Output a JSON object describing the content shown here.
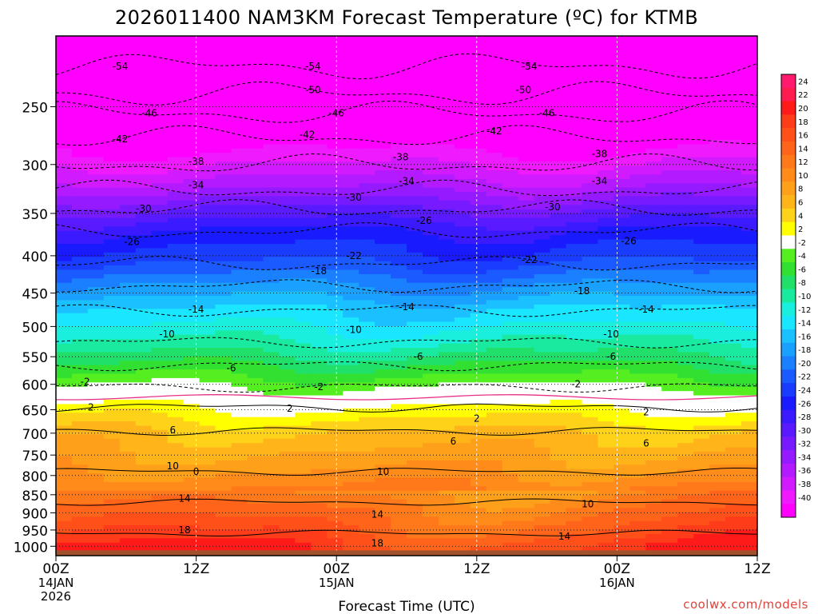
{
  "chart_data": {
    "type": "heatmap",
    "title": "2026011400 NAM3KM Forecast Temperature (ºC) for KTMB",
    "xlabel": "Forecast Time (UTC)",
    "ylabel": "",
    "x_range_hours": [
      0,
      60
    ],
    "y_range_hpa": [
      200,
      1030
    ],
    "x_ticks": [
      {
        "hour": 0,
        "lines": [
          "00Z",
          "14JAN",
          "2026"
        ]
      },
      {
        "hour": 12,
        "lines": [
          "12Z"
        ]
      },
      {
        "hour": 24,
        "lines": [
          "00Z",
          "15JAN"
        ]
      },
      {
        "hour": 36,
        "lines": [
          "12Z"
        ]
      },
      {
        "hour": 48,
        "lines": [
          "00Z",
          "16JAN"
        ]
      },
      {
        "hour": 60,
        "lines": [
          "12Z"
        ]
      }
    ],
    "y_ticks": [
      250,
      300,
      350,
      400,
      450,
      500,
      550,
      600,
      650,
      700,
      750,
      800,
      850,
      900,
      950,
      1000
    ],
    "colorbar": {
      "labels": [
        "24",
        "22",
        "20",
        "18",
        "16",
        "14",
        "12",
        "10",
        "8",
        "6",
        "4",
        "2",
        "-2",
        "-4",
        "-6",
        "-8",
        "-10",
        "-12",
        "-14",
        "-16",
        "-18",
        "-20",
        "-22",
        "-24",
        "-26",
        "-28",
        "-30",
        "-32",
        "-34",
        "-36",
        "-38",
        "-40"
      ],
      "bands": [
        {
          "min": 24,
          "color": "#ff1a6e"
        },
        {
          "min": 22,
          "color": "#ff1a50"
        },
        {
          "min": 20,
          "color": "#ff1a1a"
        },
        {
          "min": 18,
          "color": "#ff3c1a"
        },
        {
          "min": 16,
          "color": "#ff501a"
        },
        {
          "min": 14,
          "color": "#ff641a"
        },
        {
          "min": 12,
          "color": "#ff781a"
        },
        {
          "min": 10,
          "color": "#ff8c1a"
        },
        {
          "min": 8,
          "color": "#ffa01a"
        },
        {
          "min": 6,
          "color": "#ffb41a"
        },
        {
          "min": 4,
          "color": "#ffd21a"
        },
        {
          "min": 2,
          "color": "#ffff00"
        },
        {
          "min": -2,
          "color": "#ffffff"
        },
        {
          "min": -4,
          "color": "#55ee20"
        },
        {
          "min": -6,
          "color": "#32e032"
        },
        {
          "min": -8,
          "color": "#20e06a"
        },
        {
          "min": -10,
          "color": "#1aeaa0"
        },
        {
          "min": -12,
          "color": "#1aeedc"
        },
        {
          "min": -14,
          "color": "#1ae6ff"
        },
        {
          "min": -16,
          "color": "#1ac0ff"
        },
        {
          "min": -18,
          "color": "#1aa0ff"
        },
        {
          "min": -20,
          "color": "#1a80ff"
        },
        {
          "min": -22,
          "color": "#1a5aff"
        },
        {
          "min": -24,
          "color": "#1a3cff"
        },
        {
          "min": -26,
          "color": "#1a1aff"
        },
        {
          "min": -28,
          "color": "#3c1aff"
        },
        {
          "min": -30,
          "color": "#5a1aff"
        },
        {
          "min": -32,
          "color": "#781aff"
        },
        {
          "min": -34,
          "color": "#961aff"
        },
        {
          "min": -36,
          "color": "#b41aff"
        },
        {
          "min": -38,
          "color": "#d21aff"
        },
        {
          "min": -40,
          "color": "#f01aff"
        },
        {
          "min": -999,
          "color": "#ff00ff"
        }
      ]
    },
    "temperature_profile": [
      {
        "p": 200,
        "t": -58
      },
      {
        "p": 220,
        "t": -54
      },
      {
        "p": 240,
        "t": -50
      },
      {
        "p": 255,
        "t": -46
      },
      {
        "p": 275,
        "t": -42
      },
      {
        "p": 300,
        "t": -38
      },
      {
        "p": 325,
        "t": -34
      },
      {
        "p": 345,
        "t": -30
      },
      {
        "p": 370,
        "t": -26
      },
      {
        "p": 410,
        "t": -22
      },
      {
        "p": 440,
        "t": -18
      },
      {
        "p": 475,
        "t": -14
      },
      {
        "p": 525,
        "t": -10
      },
      {
        "p": 565,
        "t": -6
      },
      {
        "p": 605,
        "t": -2
      },
      {
        "p": 645,
        "t": 2
      },
      {
        "p": 695,
        "t": 6
      },
      {
        "p": 790,
        "t": 10
      },
      {
        "p": 870,
        "t": 14
      },
      {
        "p": 960,
        "t": 18
      },
      {
        "p": 1000,
        "t": 20
      },
      {
        "p": 1030,
        "t": 20
      }
    ],
    "contour_labels": [
      {
        "t": "-54",
        "hour": 5.5,
        "p": 220
      },
      {
        "t": "-54",
        "hour": 22,
        "p": 220
      },
      {
        "t": "-54",
        "hour": 40.5,
        "p": 220
      },
      {
        "t": "-50",
        "hour": 22,
        "p": 237
      },
      {
        "t": "-50",
        "hour": 40,
        "p": 237
      },
      {
        "t": "-46",
        "hour": 8,
        "p": 255
      },
      {
        "t": "-46",
        "hour": 24,
        "p": 255
      },
      {
        "t": "-46",
        "hour": 42,
        "p": 255
      },
      {
        "t": "-42",
        "hour": 5.5,
        "p": 277
      },
      {
        "t": "-42",
        "hour": 21.5,
        "p": 273
      },
      {
        "t": "-42",
        "hour": 37.5,
        "p": 270
      },
      {
        "t": "-38",
        "hour": 12,
        "p": 297
      },
      {
        "t": "-38",
        "hour": 29.5,
        "p": 293
      },
      {
        "t": "-38",
        "hour": 46.5,
        "p": 290
      },
      {
        "t": "-34",
        "hour": 12,
        "p": 320
      },
      {
        "t": "-34",
        "hour": 30,
        "p": 316
      },
      {
        "t": "-34",
        "hour": 46.5,
        "p": 316
      },
      {
        "t": "-30",
        "hour": 7.5,
        "p": 345
      },
      {
        "t": "-30",
        "hour": 25.5,
        "p": 333
      },
      {
        "t": "-30",
        "hour": 42.5,
        "p": 343
      },
      {
        "t": "-26",
        "hour": 6.5,
        "p": 383
      },
      {
        "t": "-26",
        "hour": 31.5,
        "p": 358
      },
      {
        "t": "-26",
        "hour": 49,
        "p": 382
      },
      {
        "t": "-22",
        "hour": 25.5,
        "p": 400
      },
      {
        "t": "-22",
        "hour": 40.5,
        "p": 405
      },
      {
        "t": "-18",
        "hour": 22.5,
        "p": 420
      },
      {
        "t": "-18",
        "hour": 45,
        "p": 447
      },
      {
        "t": "-14",
        "hour": 12,
        "p": 474
      },
      {
        "t": "-14",
        "hour": 30,
        "p": 470
      },
      {
        "t": "-14",
        "hour": 50.5,
        "p": 474
      },
      {
        "t": "-10",
        "hour": 9.5,
        "p": 512
      },
      {
        "t": "-10",
        "hour": 25.5,
        "p": 505
      },
      {
        "t": "-10",
        "hour": 47.5,
        "p": 512
      },
      {
        "t": "-6",
        "hour": 15,
        "p": 570
      },
      {
        "t": "-6",
        "hour": 31,
        "p": 550
      },
      {
        "t": "-6",
        "hour": 47.5,
        "p": 550
      },
      {
        "t": "-2",
        "hour": 2.5,
        "p": 595
      },
      {
        "t": "-2",
        "hour": 22.5,
        "p": 605
      },
      {
        "t": "-2",
        "hour": 44.5,
        "p": 600
      },
      {
        "t": "2",
        "hour": 3,
        "p": 645
      },
      {
        "t": "2",
        "hour": 20,
        "p": 648
      },
      {
        "t": "2",
        "hour": 36,
        "p": 668
      },
      {
        "t": "2",
        "hour": 50.5,
        "p": 655
      },
      {
        "t": "6",
        "hour": 10,
        "p": 693
      },
      {
        "t": "6",
        "hour": 34,
        "p": 718
      },
      {
        "t": "6",
        "hour": 50.5,
        "p": 723
      },
      {
        "t": "10",
        "hour": 10,
        "p": 777
      },
      {
        "t": "10",
        "hour": 28,
        "p": 790
      },
      {
        "t": "10",
        "hour": 45.5,
        "p": 875
      },
      {
        "t": "0",
        "hour": 12,
        "p": 790
      },
      {
        "t": "14",
        "hour": 11,
        "p": 860
      },
      {
        "t": "14",
        "hour": 27.5,
        "p": 905
      },
      {
        "t": "14",
        "hour": 43.5,
        "p": 970
      },
      {
        "t": "18",
        "hour": 11,
        "p": 950
      },
      {
        "t": "18",
        "hour": 27.5,
        "p": 990
      }
    ]
  },
  "colors": {
    "ground": "#a0522d",
    "freezing_line": "#e8308a",
    "watermark": "#e0433a"
  },
  "watermark": "coolwx.com/models"
}
